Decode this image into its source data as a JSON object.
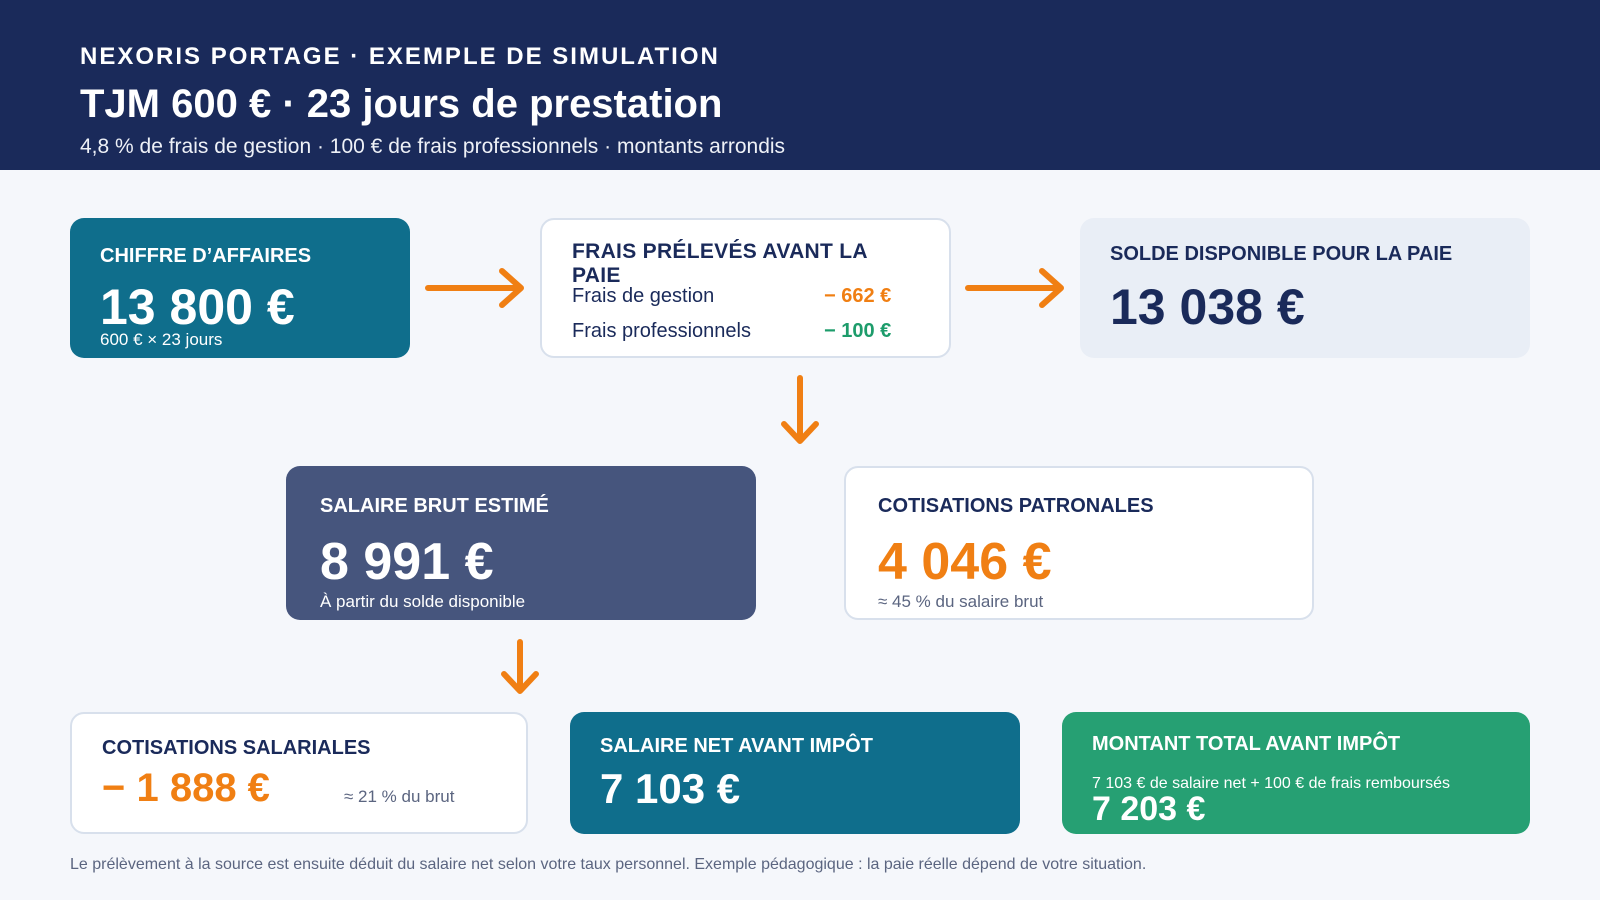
{
  "header": {
    "eyebrow": "NEXORIS PORTAGE · EXEMPLE DE SIMULATION",
    "title": "TJM 600 € · 23 jours de prestation",
    "subtitle": "4,8 % de frais de gestion · 100 € de frais professionnels · montants arrondis"
  },
  "revenue": {
    "label": "CHIFFRE D’AFFAIRES",
    "amount": "13 800 €",
    "detail": "600 € × 23 jours"
  },
  "fees": {
    "label": "FRAIS PRÉLEVÉS AVANT LA PAIE",
    "management_label": "Frais de gestion",
    "management_amount": "− 662 €",
    "professional_label": "Frais professionnels",
    "professional_amount": "− 100 €"
  },
  "balance": {
    "label": "SOLDE DISPONIBLE POUR LA PAIE",
    "amount": "13 038 €"
  },
  "gross": {
    "label": "SALAIRE BRUT ESTIMÉ",
    "amount": "8 991 €",
    "detail": "À partir du solde disponible"
  },
  "employer": {
    "label": "COTISATIONS PATRONALES",
    "amount": "4 046 €",
    "detail": "≈ 45 % du salaire brut"
  },
  "employee": {
    "label": "COTISATIONS SALARIALES",
    "amount": "− 1 888 €",
    "detail": "≈ 21 % du brut"
  },
  "net": {
    "label": "SALAIRE NET AVANT IMPÔT",
    "amount": "7 103 €"
  },
  "total": {
    "label": "MONTANT TOTAL AVANT IMPÔT",
    "detail": "7 103 € de salaire net + 100 € de frais remboursés",
    "amount": "7 203 €"
  },
  "footnote": "Le prélèvement à la source est ensuite déduit du salaire net selon votre taux personnel. Exemple pédagogique : la paie réelle dépend de votre situation.",
  "colors": {
    "header_bg": "#1a2a5a",
    "teal": "#0f6e8c",
    "slate": "#46557d",
    "green": "#26a073",
    "accent_orange": "#f07f13",
    "accent_green": "#1d9c6b"
  }
}
